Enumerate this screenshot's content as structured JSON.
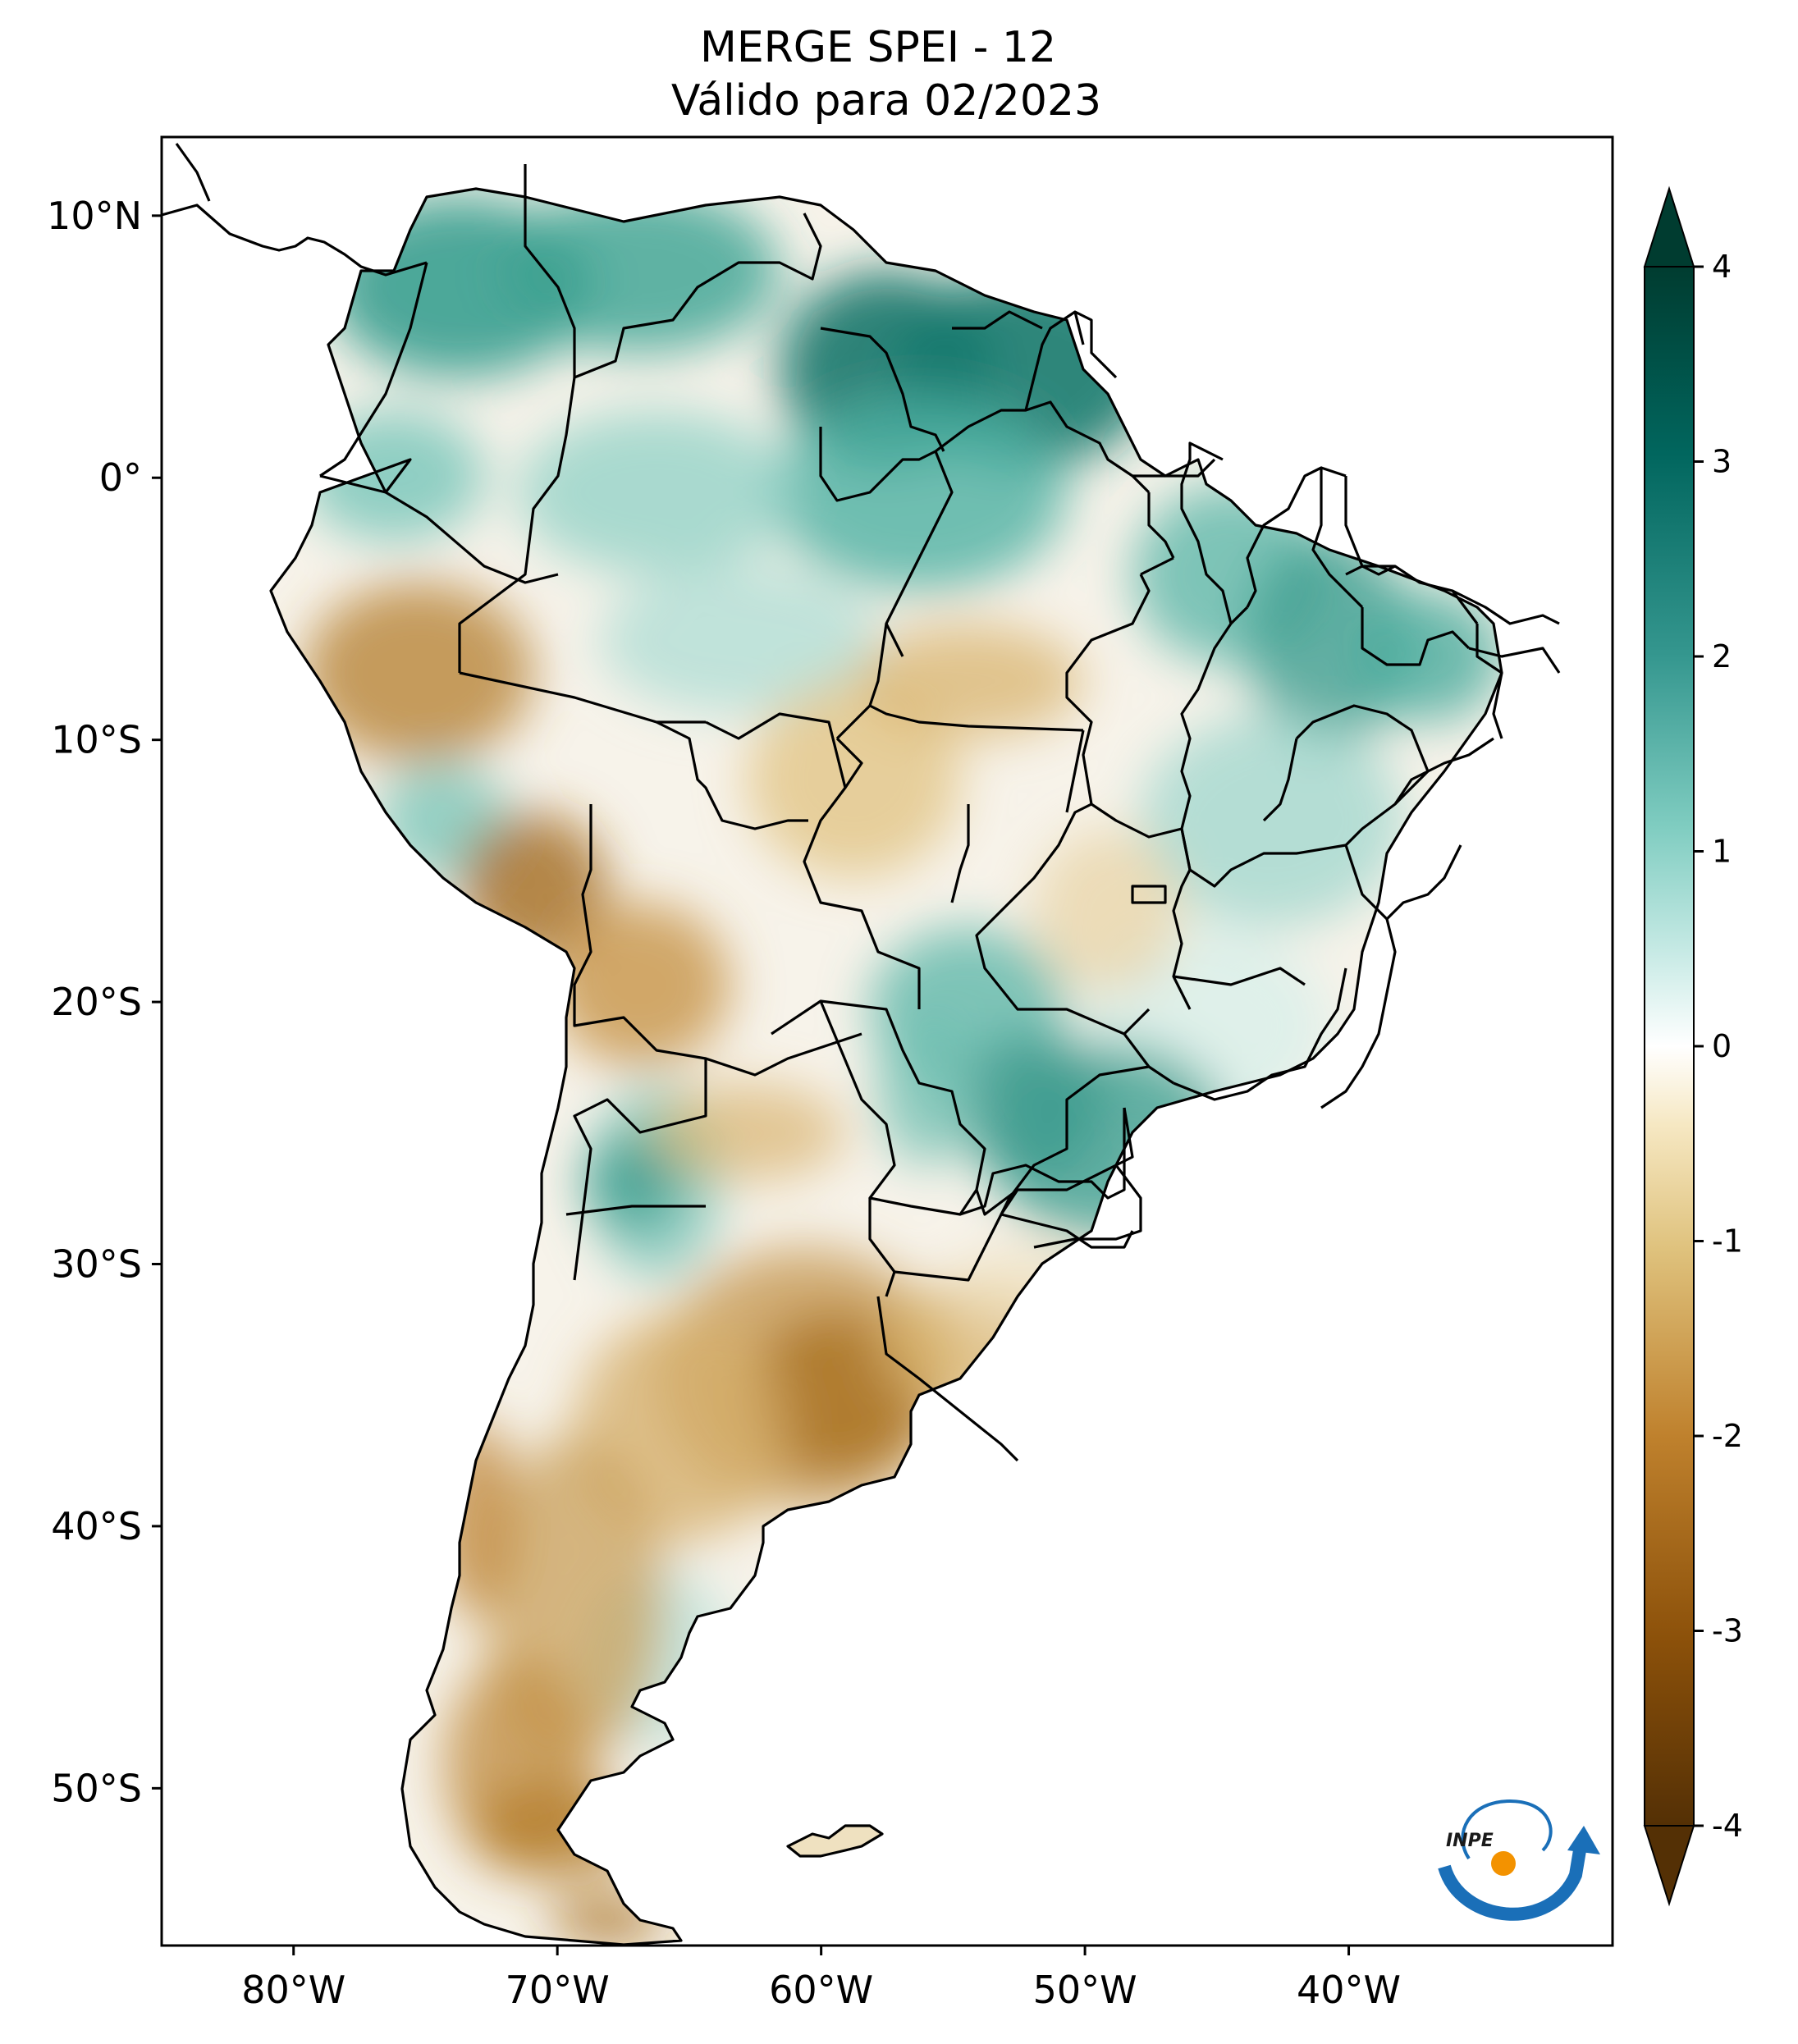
{
  "title": {
    "line1": "MERGE   SPEI - 12",
    "line2": "Válido para 02/2023"
  },
  "map": {
    "lon_range": [
      -85,
      -30
    ],
    "lat_range": [
      -56,
      13
    ],
    "lon_ticks": [
      {
        "value": -80,
        "label": "80°W"
      },
      {
        "value": -70,
        "label": "70°W"
      },
      {
        "value": -60,
        "label": "60°W"
      },
      {
        "value": -50,
        "label": "50°W"
      },
      {
        "value": -40,
        "label": "40°W"
      }
    ],
    "lat_ticks": [
      {
        "value": 10,
        "label": "10°N"
      },
      {
        "value": 0,
        "label": "0°"
      },
      {
        "value": -10,
        "label": "10°S"
      },
      {
        "value": -20,
        "label": "20°S"
      },
      {
        "value": -30,
        "label": "30°S"
      },
      {
        "value": -40,
        "label": "40°S"
      },
      {
        "value": -50,
        "label": "50°S"
      }
    ],
    "dry_color": "#8c5109",
    "wet_color": "#01665e"
  },
  "colorbar": {
    "min": -4,
    "max": 4,
    "extend": "both",
    "ticks": [
      "4",
      "3",
      "2",
      "1",
      "0",
      "-1",
      "-2",
      "-3",
      "-4"
    ],
    "colors": [
      "#543005",
      "#8c510a",
      "#bf812d",
      "#dfc27d",
      "#f6e8c3",
      "#f5f5f5",
      "#c7eae5",
      "#80cdc1",
      "#35978f",
      "#01665e",
      "#003c30"
    ]
  },
  "logo": {
    "text": "INPE",
    "blue": "#1a6fb8",
    "orange": "#f39200"
  }
}
